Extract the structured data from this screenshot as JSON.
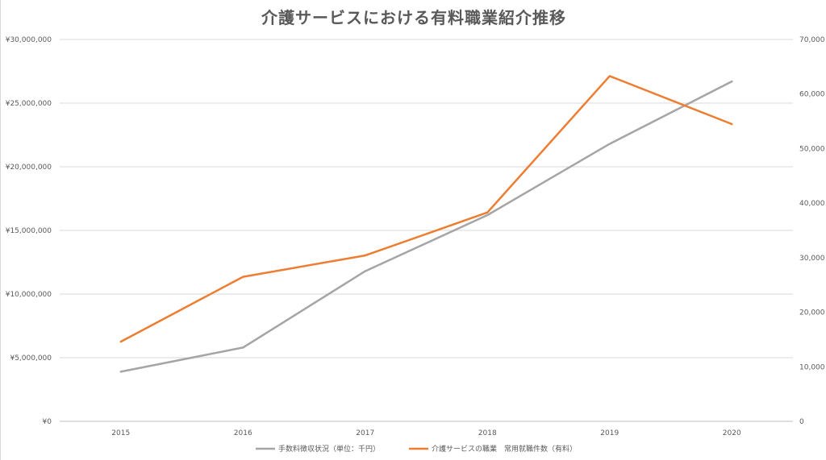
{
  "chart_data": {
    "type": "line",
    "title": "介護サービスにおける有料職業紹介推移",
    "categories": [
      "2015",
      "2016",
      "2017",
      "2018",
      "2019",
      "2020"
    ],
    "y_left": {
      "ylim": [
        0,
        30000000
      ],
      "tick_values": [
        0,
        5000000,
        10000000,
        15000000,
        20000000,
        25000000,
        30000000
      ],
      "tick_labels": [
        "¥0",
        "¥5,000,000",
        "¥10,000,000",
        "¥15,000,000",
        "¥20,000,000",
        "¥25,000,000",
        "¥30,000,000"
      ]
    },
    "y_right": {
      "ylim": [
        0,
        70000
      ],
      "tick_values": [
        0,
        10000,
        20000,
        30000,
        40000,
        50000,
        60000,
        70000
      ],
      "tick_labels": [
        "0",
        "10,000",
        "20,000",
        "30,000",
        "40,000",
        "50,000",
        "60,000",
        "70,000"
      ]
    },
    "series": [
      {
        "name": "手数料徴収状況（単位：千円）",
        "axis": "left",
        "color": "#a5a5a5",
        "values": [
          3900000,
          5800000,
          11800000,
          16200000,
          21800000,
          26700000
        ]
      },
      {
        "name": "介護サービスの職業　常用就職件数（有料）",
        "axis": "right",
        "color": "#ed7d31",
        "values": [
          14600,
          26500,
          30400,
          38300,
          63300,
          54500
        ]
      }
    ],
    "grid": true,
    "legend_position": "bottom"
  }
}
